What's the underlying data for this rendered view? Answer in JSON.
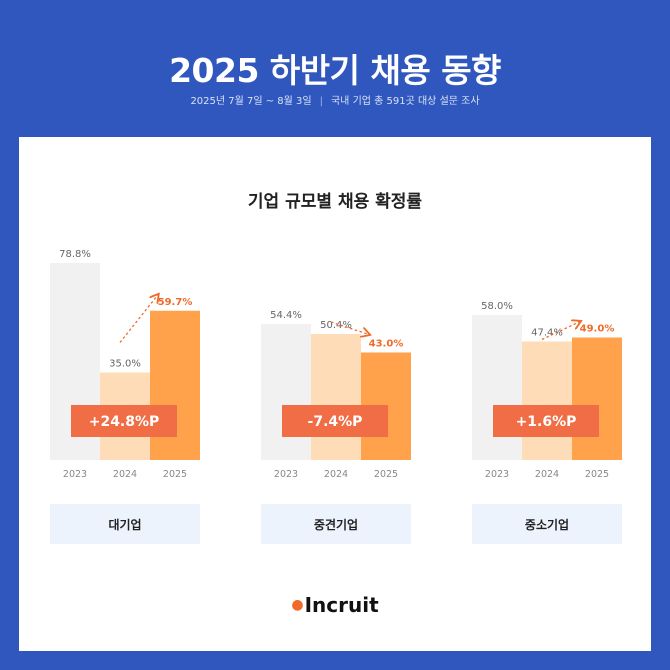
{
  "header": {
    "title": "2025 하반기 채용 동향",
    "date_range": "2025년 7월 7일 ~ 8월 3일",
    "separator": "|",
    "survey": "국내 기업 총 591곳 대상 설문 조사"
  },
  "chart_data": {
    "type": "bar",
    "title": "기업 규모별 채용 확정률",
    "categories": [
      "2023",
      "2024",
      "2025"
    ],
    "ylim": [
      0,
      100
    ],
    "colors": {
      "2023": "#f1f1f1",
      "2024": "#fddcb7",
      "2025": "#ffa24b",
      "badge": "#f16d45",
      "accent": "#f06a2a",
      "group_label_bg": "#ecf3fd"
    },
    "groups": [
      {
        "name": "대기업",
        "values": [
          78.8,
          35.0,
          59.7
        ],
        "labels": [
          "78.8%",
          "35.0%",
          "59.7%"
        ],
        "change": "+24.8%P",
        "trend": "up"
      },
      {
        "name": "중견기업",
        "values": [
          54.4,
          50.4,
          43.0
        ],
        "labels": [
          "54.4%",
          "50.4%",
          "43.0%"
        ],
        "change": "-7.4%P",
        "trend": "down"
      },
      {
        "name": "중소기업",
        "values": [
          58.0,
          47.4,
          49.0
        ],
        "labels": [
          "58.0%",
          "47.4%",
          "49.0%"
        ],
        "change": "+1.6%P",
        "trend": "up"
      }
    ]
  },
  "logo": {
    "text": "Incruit"
  }
}
